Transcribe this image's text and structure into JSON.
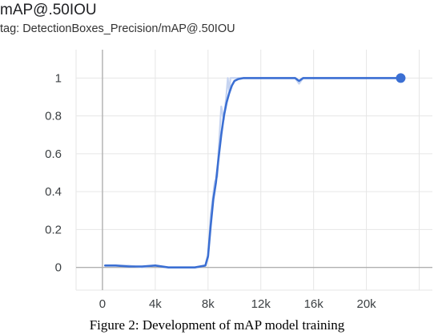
{
  "header": {
    "title": "mAP@.50IOU",
    "tag": "tag: DetectionBoxes_Precision/mAP@.50IOU"
  },
  "caption": "Figure 2: Development of mAP model training",
  "chart_data": {
    "type": "line",
    "title": "mAP@.50IOU",
    "xlabel": "",
    "ylabel": "",
    "xlim": [
      -2000,
      25000
    ],
    "ylim": [
      -0.12,
      1.15
    ],
    "x_ticks": [
      0,
      4000,
      8000,
      12000,
      16000,
      20000
    ],
    "x_tick_labels": [
      "0",
      "4k",
      "8k",
      "12k",
      "16k",
      "20k"
    ],
    "y_ticks": [
      0,
      0.2,
      0.4,
      0.6,
      0.8,
      1
    ],
    "y_tick_labels": [
      "0",
      "0.2",
      "0.4",
      "0.6",
      "0.8",
      "1"
    ],
    "grid": true,
    "colors": {
      "smoothed": "#3b6fd3",
      "raw": "#c6d4f1",
      "grid": "#e6e6e6",
      "zero_axis": "#b0b0b0"
    },
    "series": [
      {
        "role": "raw",
        "x": [
          200,
          1000,
          2000,
          3000,
          4000,
          5000,
          6000,
          7000,
          7800,
          8000,
          8200,
          8500,
          8700,
          8800,
          9000,
          9200,
          9400,
          9500,
          9600,
          9700,
          10000,
          11000,
          12000,
          13000,
          14000,
          14600,
          14900,
          15200,
          16000,
          18000,
          20000,
          22000,
          22600
        ],
        "y": [
          0.01,
          0.01,
          0.01,
          0.0,
          0.01,
          0.0,
          0.0,
          0.0,
          0.01,
          0.05,
          0.28,
          0.45,
          0.48,
          0.62,
          0.85,
          0.78,
          0.92,
          1.0,
          0.93,
          1.0,
          1.0,
          1.0,
          1.0,
          1.0,
          1.0,
          1.0,
          0.97,
          1.0,
          1.0,
          1.0,
          1.0,
          1.0,
          1.0
        ]
      },
      {
        "role": "smoothed",
        "x": [
          200,
          1000,
          2000,
          3000,
          4000,
          5000,
          6000,
          7000,
          7800,
          8000,
          8200,
          8400,
          8600,
          8800,
          9000,
          9200,
          9400,
          9600,
          9800,
          10000,
          10300,
          10700,
          11000,
          12000,
          13000,
          14000,
          14600,
          14900,
          15200,
          16000,
          18000,
          20000,
          22000,
          22600
        ],
        "y": [
          0.01,
          0.01,
          0.005,
          0.005,
          0.01,
          0.0,
          0.0,
          0.0,
          0.01,
          0.06,
          0.22,
          0.36,
          0.45,
          0.58,
          0.7,
          0.8,
          0.87,
          0.92,
          0.96,
          0.985,
          0.995,
          1.0,
          1.0,
          1.0,
          1.0,
          1.0,
          1.0,
          0.985,
          1.0,
          1.0,
          1.0,
          1.0,
          1.0,
          1.0
        ]
      }
    ],
    "end_marker": {
      "x": 22600,
      "y": 1.0
    }
  }
}
